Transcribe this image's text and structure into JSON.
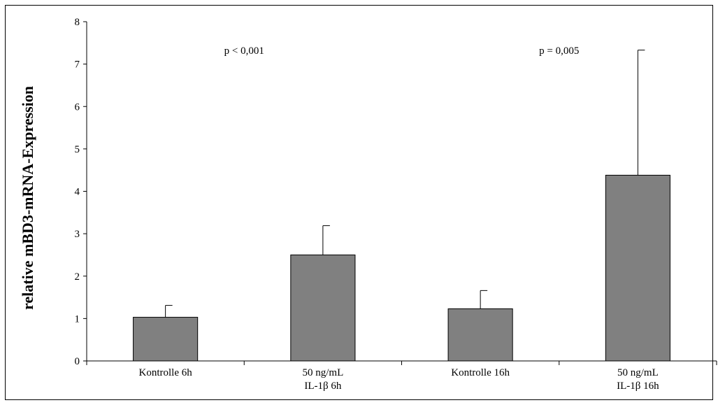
{
  "chart_data": {
    "type": "bar",
    "title": "",
    "xlabel": "",
    "ylabel": "relative mBD3-mRNA-Expression",
    "ylim": [
      0,
      8
    ],
    "yticks": [
      0,
      1,
      2,
      3,
      4,
      5,
      6,
      7,
      8
    ],
    "grid": false,
    "categories": [
      [
        "Kontrolle 6h"
      ],
      [
        "50 ng/mL",
        "IL-1β 6h"
      ],
      [
        "Kontrolle 16h"
      ],
      [
        "50 ng/mL",
        "IL-1β 16h"
      ]
    ],
    "series": [
      {
        "values": [
          1.03,
          2.5,
          1.23,
          4.38
        ],
        "error_plus": [
          0.28,
          0.69,
          0.43,
          2.95
        ]
      }
    ],
    "annotations": [
      {
        "text": "p < 0,001",
        "between": [
          0,
          1
        ]
      },
      {
        "text": "p = 0,005",
        "between": [
          2,
          3
        ]
      }
    ],
    "colors": {
      "bar_fill": "#808080",
      "bar_stroke": "#000000",
      "axis": "#000000"
    }
  }
}
